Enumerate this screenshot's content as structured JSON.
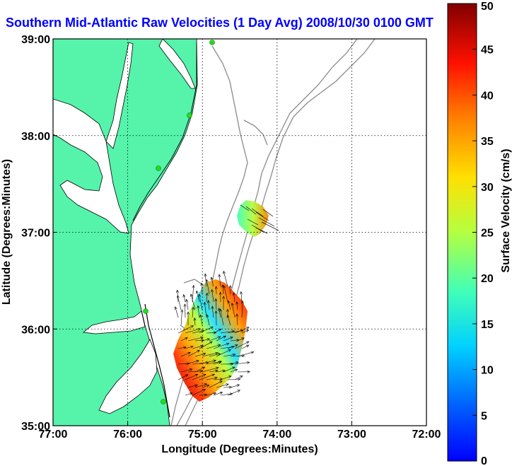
{
  "title": "Southern Mid-Atlantic Raw Velocities (1 Day Avg) 2008/10/30 0100 GMT",
  "axes": {
    "xlabel": "Longitude (Degrees:Minutes)",
    "ylabel": "Latitude (Degrees:Minutes)",
    "x_ticks": [
      "77:00",
      "76:00",
      "75:00",
      "74:00",
      "73:00",
      "72:00"
    ],
    "y_ticks": [
      "39:00",
      "38:00",
      "37:00",
      "36:00",
      "35:00"
    ],
    "xlim": [
      -77,
      -72
    ],
    "ylim": [
      35,
      39
    ],
    "grid": "dotted"
  },
  "colorbar": {
    "label": "Surface Velocity (cm/s)",
    "ticks": [
      "50",
      "45",
      "40",
      "35",
      "30",
      "25",
      "20",
      "15",
      "10",
      "5",
      "0"
    ],
    "range": [
      0,
      50
    ],
    "colormap": "jet"
  },
  "colors": {
    "land": "#55f4aa",
    "title": "#0000ff",
    "bathymetry": "#8a8a8a",
    "station": "#22dd22",
    "coast": "#000000"
  },
  "chart_data": {
    "type": "vector-field-map",
    "velocity_range_cm_s": [
      0,
      50
    ],
    "regions": [
      {
        "name": "",
        "center": [
          -74.4,
          37.1
        ],
        "approx_speed_cm_s": [
          12,
          35
        ]
      },
      {
        "name": "",
        "center": [
          -74.9,
          35.8
        ],
        "approx_speed_cm_s": [
          5,
          50
        ]
      }
    ]
  }
}
